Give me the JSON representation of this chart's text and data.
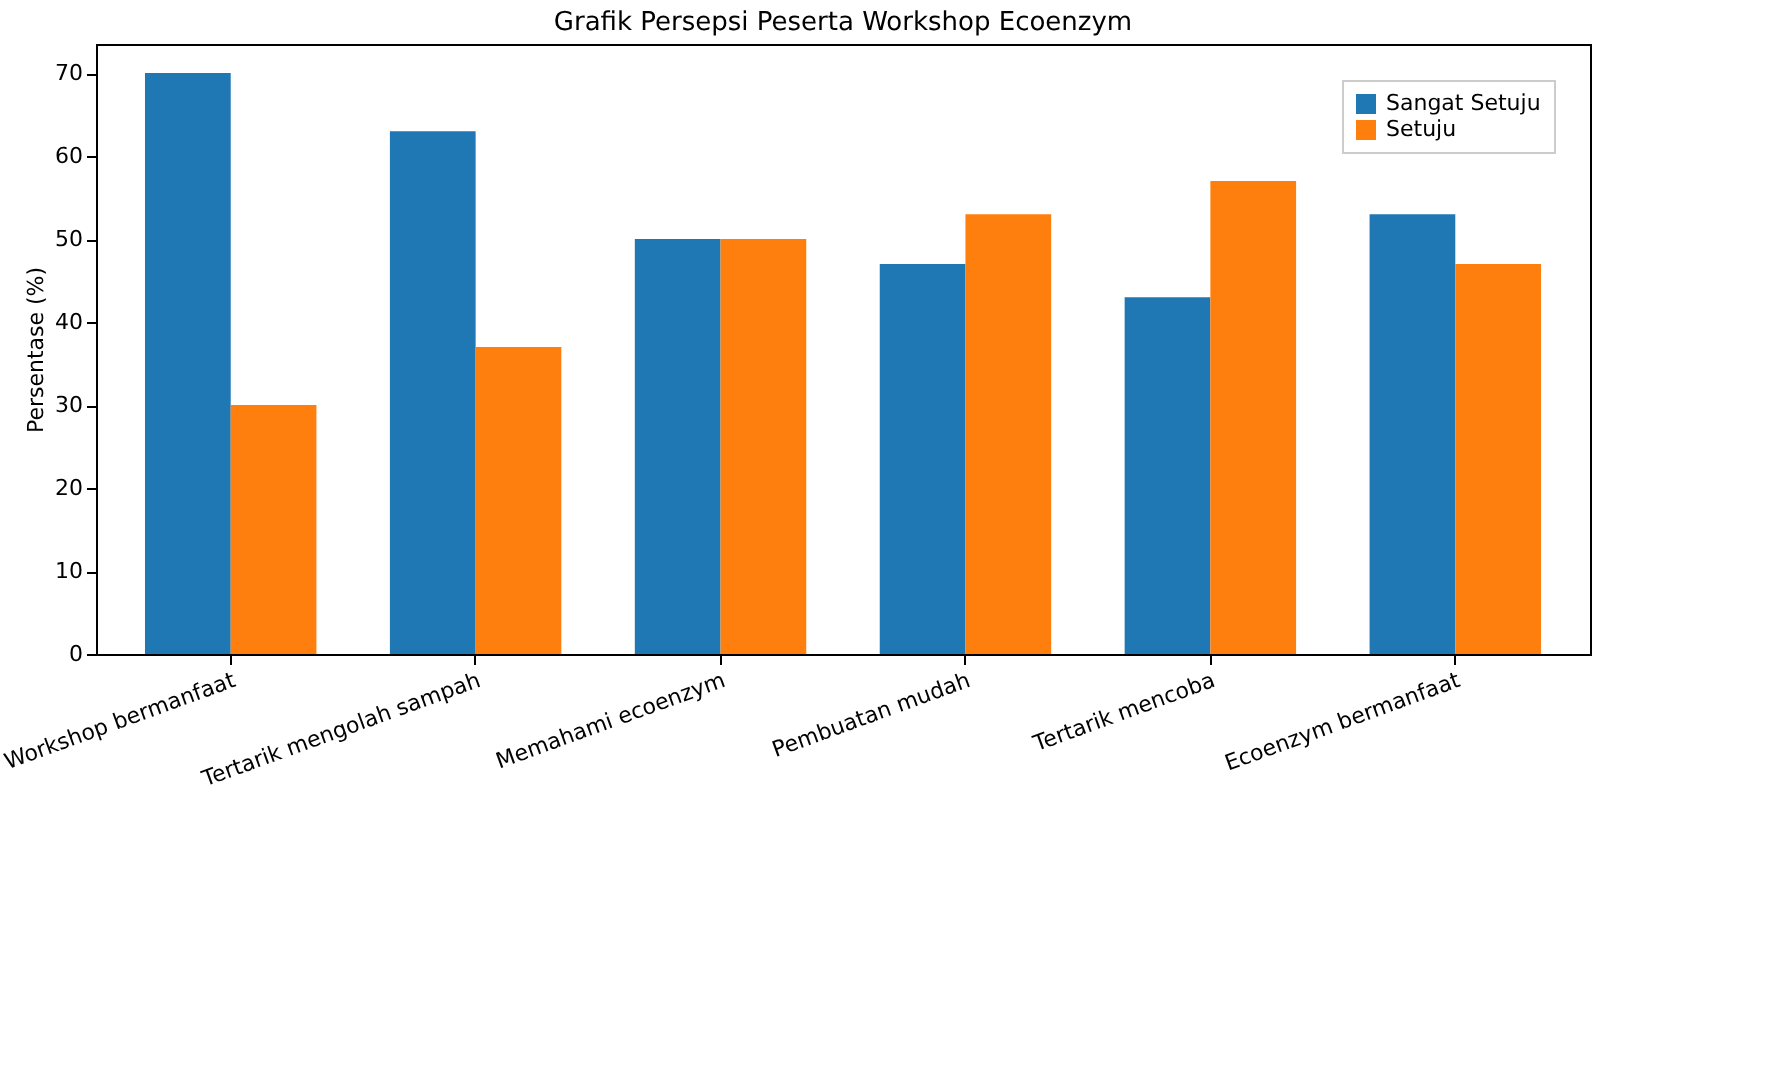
{
  "chart_data": {
    "type": "bar",
    "title": "Grafik Persepsi Peserta Workshop Ecoenzym",
    "ylabel": "Persentase (%)",
    "categories": [
      "Workshop bermanfaat",
      "Tertarik mengolah sampah",
      "Memahami ecoenzym",
      "Pembuatan mudah",
      "Tertarik mencoba",
      "Ecoenzym bermanfaat"
    ],
    "series": [
      {
        "name": "Sangat Setuju",
        "color": "#1f77b4",
        "values": [
          70,
          63,
          50,
          47,
          43,
          53
        ]
      },
      {
        "name": "Setuju",
        "color": "#ff7f0e",
        "values": [
          30,
          37,
          50,
          53,
          57,
          47
        ]
      }
    ],
    "ylim": [
      0,
      73.5
    ],
    "yticks": [
      0,
      10,
      20,
      30,
      40,
      50,
      60,
      70
    ],
    "grid": false,
    "legend": "top right"
  }
}
